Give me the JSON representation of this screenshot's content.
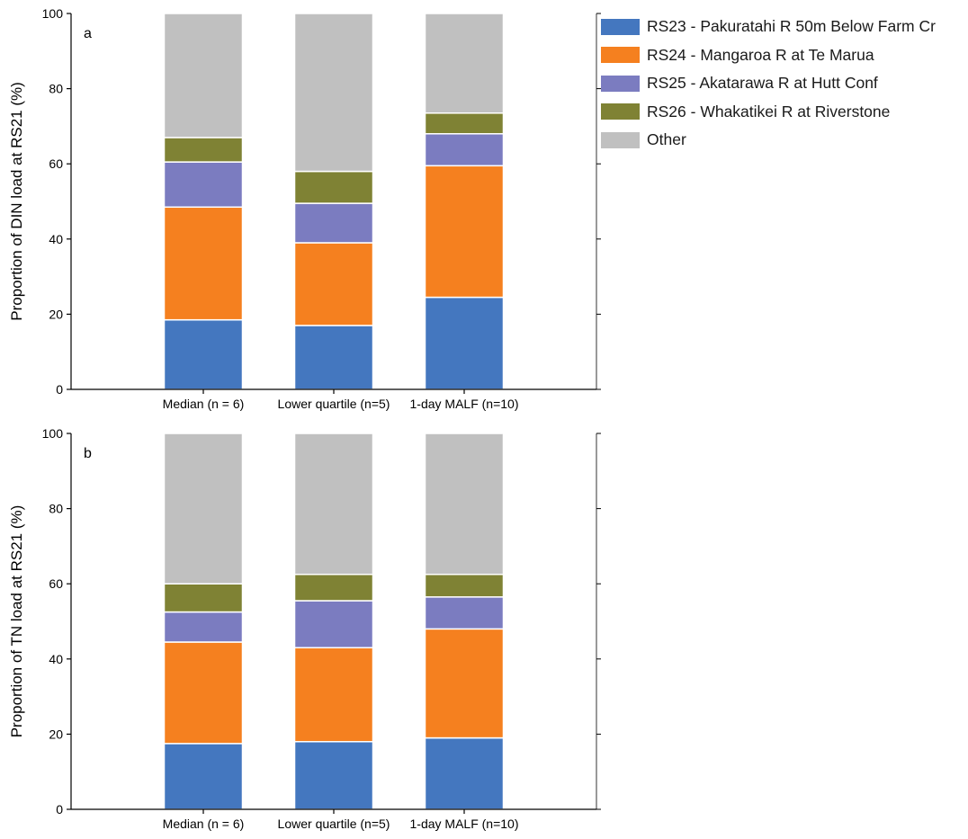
{
  "colors": {
    "RS23": "#4477BF",
    "RS24": "#F5801F",
    "RS25": "#7B7CC0",
    "RS26": "#7F8234",
    "Other": "#C0C0C0",
    "axis": "#000000"
  },
  "legend": {
    "items": [
      {
        "key": "RS23",
        "label": "RS23 - Pakuratahi R 50m Below Farm Cr"
      },
      {
        "key": "RS24",
        "label": "RS24 - Mangaroa R at Te Marua"
      },
      {
        "key": "RS25",
        "label": "RS25 - Akatarawa R at Hutt Conf"
      },
      {
        "key": "RS26",
        "label": "RS26 - Whakatikei R at Riverstone"
      },
      {
        "key": "Other",
        "label": "Other"
      }
    ]
  },
  "chart_data": [
    {
      "type": "bar",
      "stacked": true,
      "panel_label": "a",
      "ylabel": "Proportion of DIN load at RS21 (%)",
      "xlabel": "",
      "ylim": [
        0,
        100
      ],
      "yticks": [
        "0",
        "20",
        "40",
        "60",
        "80",
        "100"
      ],
      "categories": [
        "Median (n = 6)",
        "Lower quartile (n=5)",
        "1-day MALF (n=10)"
      ],
      "series": [
        {
          "name": "RS23 - Pakuratahi R 50m Below Farm Cr",
          "key": "RS23",
          "values": [
            18.5,
            17.0,
            24.5
          ]
        },
        {
          "name": "RS24 - Mangaroa R at Te Marua",
          "key": "RS24",
          "values": [
            30.0,
            22.0,
            35.0
          ]
        },
        {
          "name": "RS25 - Akatarawa R at Hutt Conf",
          "key": "RS25",
          "values": [
            12.0,
            10.5,
            8.5
          ]
        },
        {
          "name": "RS26 - Whakatikei R at Riverstone",
          "key": "RS26",
          "values": [
            6.5,
            8.5,
            5.5
          ]
        },
        {
          "name": "Other",
          "key": "Other",
          "values": [
            33.0,
            42.0,
            26.5
          ]
        }
      ],
      "grid": false,
      "legend_position": "right"
    },
    {
      "type": "bar",
      "stacked": true,
      "panel_label": "b",
      "ylabel": "Proportion of TN load at RS21 (%)",
      "xlabel": "",
      "ylim": [
        0,
        100
      ],
      "yticks": [
        "0",
        "20",
        "40",
        "60",
        "80",
        "100"
      ],
      "categories": [
        "Median (n = 6)",
        "Lower quartile (n=5)",
        "1-day MALF (n=10)"
      ],
      "series": [
        {
          "name": "RS23 - Pakuratahi R 50m Below Farm Cr",
          "key": "RS23",
          "values": [
            17.5,
            18.0,
            19.0
          ]
        },
        {
          "name": "RS24 - Mangaroa R at Te Marua",
          "key": "RS24",
          "values": [
            27.0,
            25.0,
            29.0
          ]
        },
        {
          "name": "RS25 - Akatarawa R at Hutt Conf",
          "key": "RS25",
          "values": [
            8.0,
            12.5,
            8.5
          ]
        },
        {
          "name": "RS26 - Whakatikei R at Riverstone",
          "key": "RS26",
          "values": [
            7.5,
            7.0,
            6.0
          ]
        },
        {
          "name": "Other",
          "key": "Other",
          "values": [
            40.0,
            37.5,
            37.5
          ]
        }
      ],
      "grid": false,
      "legend_position": "right"
    }
  ]
}
